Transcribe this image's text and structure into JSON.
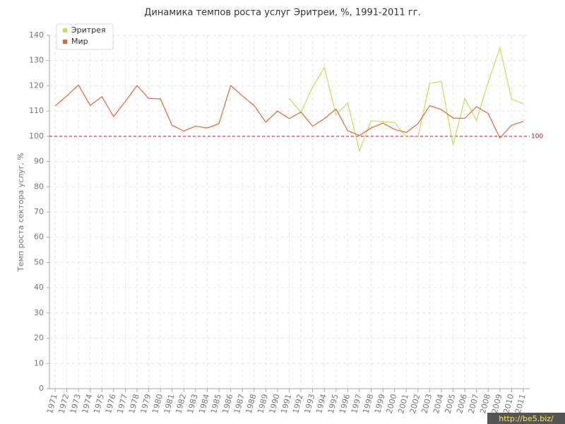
{
  "chart_data": {
    "type": "line",
    "title": "Динамика темпов роста услуг Эритреи, %, 1991-2011 гг.",
    "y_label": "Темп роста сектора услуг, %",
    "categories": [
      "1971",
      "1972",
      "1973",
      "1974",
      "1975",
      "1976",
      "1977",
      "1978",
      "1979",
      "1980",
      "1981",
      "1982",
      "1983",
      "1984",
      "1985",
      "1986",
      "1987",
      "1988",
      "1989",
      "1990",
      "1991",
      "1992",
      "1993",
      "1994",
      "1995",
      "1996",
      "1997",
      "1998",
      "1999",
      "2000",
      "2001",
      "2002",
      "2003",
      "2004",
      "2005",
      "2006",
      "2007",
      "2008",
      "2009",
      "2010",
      "2011"
    ],
    "series": [
      {
        "name": "Эритрея",
        "color": "#c5e05a",
        "values": [
          null,
          null,
          null,
          null,
          null,
          null,
          null,
          null,
          null,
          null,
          null,
          null,
          null,
          null,
          null,
          null,
          null,
          null,
          null,
          null,
          115.0,
          109.5,
          119.5,
          127.3,
          108.5,
          113.2,
          94.2,
          106.2,
          105.7,
          105.5,
          99.8,
          99.8,
          121.0,
          121.7,
          96.5,
          115.0,
          106.2,
          121.5,
          135.0,
          114.8,
          112.9
        ]
      },
      {
        "name": "Мир",
        "color": "#e0683a",
        "values": [
          112.0,
          116.0,
          120.3,
          112.2,
          115.7,
          107.8,
          113.8,
          120.1,
          115.0,
          114.8,
          104.3,
          102.1,
          104.0,
          103.3,
          105.0,
          120.1,
          116.0,
          112.2,
          105.6,
          110.0,
          107.0,
          109.6,
          104.0,
          107.0,
          110.8,
          102.2,
          100.3,
          103.3,
          105.2,
          102.7,
          101.5,
          105.0,
          112.1,
          110.6,
          107.2,
          107.1,
          111.8,
          109.0,
          99.3,
          104.4,
          105.9
        ]
      }
    ],
    "reference_line": {
      "value": 100,
      "color": "#a0203a"
    },
    "ylim": [
      0,
      140
    ],
    "yticks": [
      0,
      10,
      20,
      30,
      40,
      50,
      60,
      70,
      80,
      90,
      100,
      110,
      120,
      130,
      140
    ],
    "grid": true,
    "legend": "top-left",
    "watermark": "http://be5.biz/"
  }
}
